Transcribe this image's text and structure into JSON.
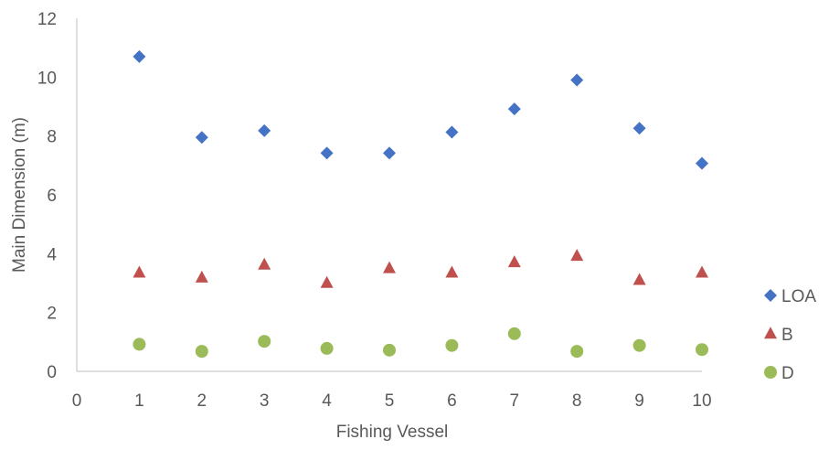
{
  "chart_data": {
    "type": "scatter",
    "xlabel": "Fishing Vessel",
    "ylabel": "Main Dimension (m)",
    "xlim": [
      0,
      10
    ],
    "ylim": [
      0,
      12
    ],
    "x_ticks": [
      "0",
      "1",
      "2",
      "3",
      "4",
      "5",
      "6",
      "7",
      "8",
      "9",
      "10"
    ],
    "y_ticks": [
      "0",
      "2",
      "4",
      "6",
      "8",
      "10",
      "12"
    ],
    "grid": false,
    "legend_position": "right",
    "x": [
      1,
      2,
      3,
      4,
      5,
      6,
      7,
      8,
      9,
      10
    ],
    "series": [
      {
        "name": "LOA",
        "marker": "diamond",
        "color": "#4472C4",
        "values": [
          10.7,
          7.95,
          8.18,
          7.42,
          7.42,
          8.13,
          8.92,
          9.9,
          8.26,
          7.07
        ]
      },
      {
        "name": "B",
        "marker": "triangle",
        "color": "#C0504D",
        "values": [
          3.35,
          3.18,
          3.62,
          3.0,
          3.5,
          3.35,
          3.7,
          3.92,
          3.1,
          3.35
        ]
      },
      {
        "name": "D",
        "marker": "circle",
        "color": "#9BBB59",
        "values": [
          0.92,
          0.68,
          1.02,
          0.78,
          0.72,
          0.88,
          1.28,
          0.68,
          0.88,
          0.74
        ]
      }
    ]
  }
}
